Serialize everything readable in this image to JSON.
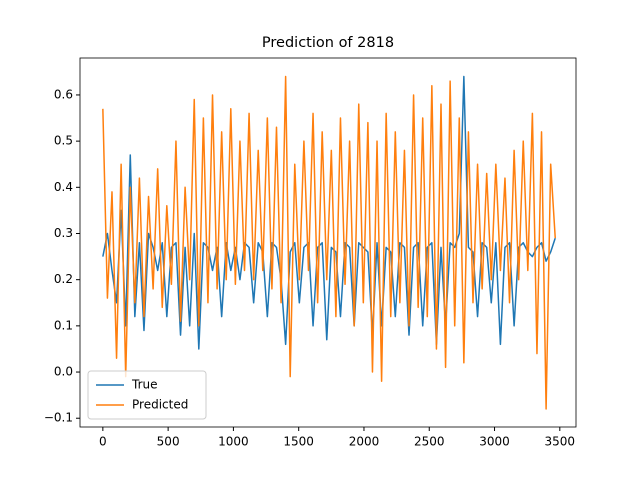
{
  "chart_data": {
    "type": "line",
    "title": "Prediction of 2818",
    "x": [
      0,
      35,
      70,
      105,
      140,
      175,
      210,
      245,
      280,
      315,
      350,
      385,
      420,
      455,
      490,
      525,
      560,
      595,
      630,
      665,
      700,
      735,
      770,
      805,
      840,
      875,
      910,
      945,
      980,
      1015,
      1050,
      1085,
      1120,
      1155,
      1190,
      1225,
      1260,
      1295,
      1330,
      1365,
      1400,
      1435,
      1470,
      1505,
      1540,
      1575,
      1610,
      1645,
      1680,
      1715,
      1750,
      1785,
      1820,
      1855,
      1890,
      1925,
      1960,
      1995,
      2030,
      2065,
      2100,
      2135,
      2170,
      2205,
      2240,
      2275,
      2310,
      2345,
      2380,
      2415,
      2450,
      2485,
      2520,
      2555,
      2590,
      2625,
      2660,
      2695,
      2730,
      2765,
      2800,
      2835,
      2870,
      2905,
      2940,
      2975,
      3010,
      3045,
      3080,
      3115,
      3150,
      3185,
      3220,
      3255,
      3290,
      3325,
      3360,
      3395,
      3430,
      3465
    ],
    "series": [
      {
        "name": "True",
        "color": "#1f77b4",
        "values": [
          0.25,
          0.3,
          0.22,
          0.15,
          0.35,
          0.1,
          0.47,
          0.12,
          0.28,
          0.09,
          0.3,
          0.27,
          0.22,
          0.28,
          0.12,
          0.27,
          0.28,
          0.08,
          0.27,
          0.1,
          0.3,
          0.05,
          0.28,
          0.27,
          0.22,
          0.27,
          0.12,
          0.28,
          0.22,
          0.27,
          0.2,
          0.28,
          0.27,
          0.15,
          0.28,
          0.26,
          0.12,
          0.28,
          0.27,
          0.2,
          0.06,
          0.26,
          0.28,
          0.15,
          0.27,
          0.28,
          0.1,
          0.27,
          0.28,
          0.07,
          0.27,
          0.26,
          0.12,
          0.28,
          0.27,
          0.1,
          0.28,
          0.27,
          0.26,
          0.08,
          0.28,
          0.1,
          0.27,
          0.26,
          0.12,
          0.28,
          0.27,
          0.08,
          0.27,
          0.28,
          0.1,
          0.27,
          0.28,
          0.06,
          0.27,
          0.1,
          0.28,
          0.27,
          0.3,
          0.64,
          0.27,
          0.26,
          0.12,
          0.28,
          0.27,
          0.15,
          0.28,
          0.06,
          0.27,
          0.28,
          0.1,
          0.27,
          0.28,
          0.26,
          0.25,
          0.27,
          0.28,
          0.24,
          0.26,
          0.29
        ]
      },
      {
        "name": "Predicted",
        "color": "#ff7f0e",
        "values": [
          0.57,
          0.16,
          0.39,
          0.03,
          0.45,
          -0.01,
          0.4,
          0.15,
          0.42,
          0.12,
          0.38,
          0.18,
          0.44,
          0.14,
          0.36,
          0.19,
          0.5,
          0.11,
          0.4,
          0.2,
          0.59,
          0.1,
          0.55,
          0.15,
          0.6,
          0.18,
          0.52,
          0.2,
          0.57,
          0.19,
          0.5,
          0.22,
          0.56,
          0.2,
          0.48,
          0.22,
          0.55,
          0.18,
          0.53,
          0.15,
          0.64,
          -0.01,
          0.45,
          0.2,
          0.5,
          0.22,
          0.56,
          0.15,
          0.52,
          0.2,
          0.48,
          0.12,
          0.55,
          0.19,
          0.5,
          0.1,
          0.58,
          0.15,
          0.54,
          0.0,
          0.5,
          -0.02,
          0.56,
          0.12,
          0.52,
          0.15,
          0.48,
          0.1,
          0.6,
          0.14,
          0.55,
          0.12,
          0.62,
          0.05,
          0.58,
          0.01,
          0.63,
          0.1,
          0.55,
          0.02,
          0.52,
          0.15,
          0.45,
          0.18,
          0.43,
          0.2,
          0.45,
          0.22,
          0.42,
          0.15,
          0.48,
          0.2,
          0.5,
          0.22,
          0.56,
          0.04,
          0.52,
          -0.08,
          0.45,
          0.29
        ]
      }
    ],
    "xlim": [
      -175,
      3624
    ],
    "xticks": [
      0,
      500,
      1000,
      1500,
      2000,
      2500,
      3000,
      3500
    ],
    "ylim": [
      -0.119,
      0.68
    ],
    "yticks": [
      {
        "value": -0.1,
        "label": "−0.1"
      },
      {
        "value": 0,
        "label": "0.0"
      },
      0.1,
      0.2,
      0.3,
      0.4,
      0.5,
      0.6
    ],
    "legend": "lower left"
  }
}
